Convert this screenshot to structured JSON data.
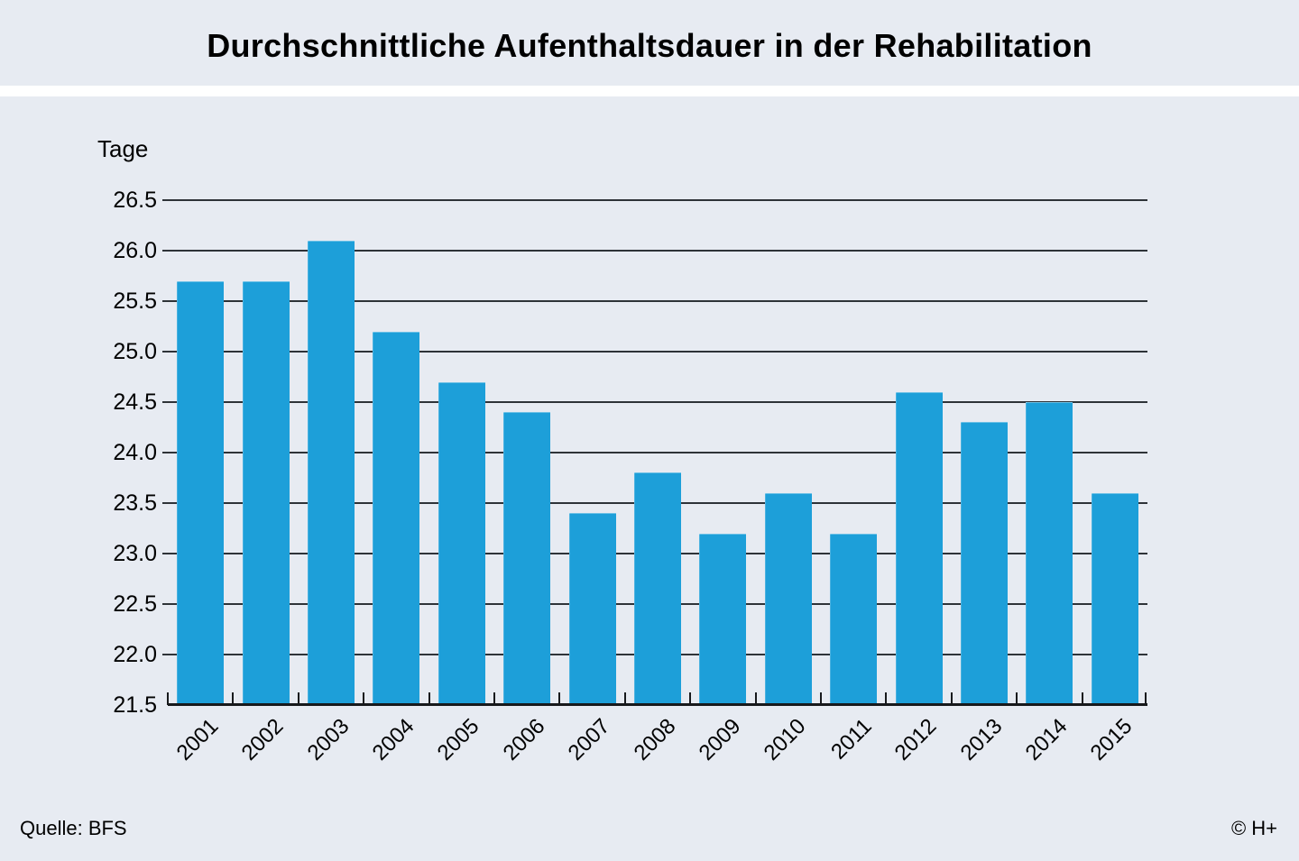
{
  "title": "Durchschnittliche Aufenthaltsdauer in der Rehabilitation",
  "footer": {
    "source": "Quelle: BFS",
    "copyright": "© H+"
  },
  "colors": {
    "background": "#E7EBF2",
    "separator": "#FFFFFF",
    "bar": "#1D9FD9",
    "gridline": "#2E3338",
    "axis": "#17191C",
    "text": "#000000"
  },
  "chart_data": {
    "type": "bar",
    "title": "Durchschnittliche Aufenthaltsdauer in der Rehabilitation",
    "ylabel": "Tage",
    "xlabel": "",
    "categories": [
      "2001",
      "2002",
      "2003",
      "2004",
      "2005",
      "2006",
      "2007",
      "2008",
      "2009",
      "2010",
      "2011",
      "2012",
      "2013",
      "2014",
      "2015"
    ],
    "values": [
      25.7,
      25.7,
      26.1,
      25.2,
      24.7,
      24.4,
      23.4,
      23.8,
      23.2,
      23.6,
      23.2,
      24.6,
      24.3,
      24.5,
      23.6
    ],
    "ylim": [
      21.5,
      26.5
    ],
    "ytick_step": 0.5,
    "grid": true,
    "legend": "none",
    "source": "Quelle: BFS",
    "copyright": "© H+"
  }
}
